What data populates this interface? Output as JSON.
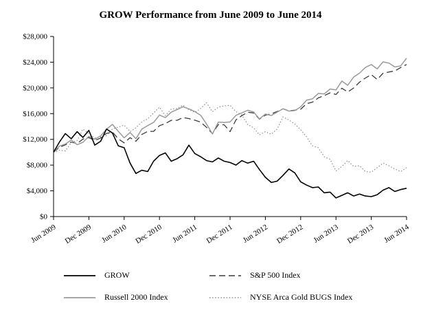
{
  "page": {
    "background": "#ffffff"
  },
  "chart_data": {
    "type": "line",
    "title": "GROW Performance from June 2009 to June 2014",
    "xlabel": "",
    "ylabel": "",
    "ylim": [
      0,
      28000
    ],
    "grid": false,
    "legend_position": "bottom",
    "x_unit": "monthly",
    "x_range": [
      "Jun 2009",
      "Jun 2014"
    ],
    "yticks": [
      {
        "value": 0,
        "label": "$0"
      },
      {
        "value": 4000,
        "label": "$4,000"
      },
      {
        "value": 8000,
        "label": "$8,000"
      },
      {
        "value": 12000,
        "label": "$12,000"
      },
      {
        "value": 16000,
        "label": "$16,000"
      },
      {
        "value": 20000,
        "label": "$20,000"
      },
      {
        "value": 24000,
        "label": "$24,000"
      },
      {
        "value": 28000,
        "label": "$28,000"
      }
    ],
    "xticks": [
      {
        "index": 0,
        "label": "Jun 2009"
      },
      {
        "index": 6,
        "label": "Dec 2009"
      },
      {
        "index": 12,
        "label": "Jun 2010"
      },
      {
        "index": 18,
        "label": "Dec 2010"
      },
      {
        "index": 24,
        "label": "Jun 2011"
      },
      {
        "index": 30,
        "label": "Dec 2011"
      },
      {
        "index": 36,
        "label": "Jun 2012"
      },
      {
        "index": 42,
        "label": "Dec 2012"
      },
      {
        "index": 48,
        "label": "Jun 2013"
      },
      {
        "index": 54,
        "label": "Dec 2013"
      },
      {
        "index": 60,
        "label": "Jun 2014"
      }
    ],
    "series": [
      {
        "name": "GROW",
        "color": "#000000",
        "style": "solid",
        "width": 1.6,
        "values": [
          10000,
          11600,
          12900,
          12100,
          13200,
          12300,
          13400,
          11100,
          11700,
          13600,
          13000,
          11000,
          10700,
          8300,
          6700,
          7200,
          7000,
          8600,
          9500,
          9900,
          8600,
          9000,
          9600,
          11100,
          9800,
          9300,
          8700,
          8500,
          9100,
          8600,
          8400,
          8000,
          8700,
          8300,
          8600,
          7300,
          6100,
          5300,
          5500,
          6400,
          7400,
          6800,
          5400,
          4900,
          4500,
          4600,
          3700,
          3800,
          2900,
          3300,
          3700,
          3200,
          3500,
          3200,
          3100,
          3400,
          4100,
          4500,
          3900,
          4200,
          4400
        ]
      },
      {
        "name": "S&P 500 Index",
        "color": "#3a3a3a",
        "style": "dashed",
        "width": 1.3,
        "values": [
          10000,
          10760,
          11150,
          11570,
          11360,
          12040,
          12270,
          11830,
          12200,
          12930,
          13140,
          12090,
          11460,
          12260,
          11710,
          12760,
          13240,
          13240,
          14130,
          14460,
          14960,
          14960,
          15400,
          15230,
          14980,
          14670,
          13870,
          12890,
          14300,
          14270,
          13200,
          15040,
          15690,
          16210,
          16100,
          15130,
          15760,
          15970,
          16330,
          16750,
          16440,
          16530,
          16680,
          17550,
          17780,
          18450,
          18800,
          19240,
          18980,
          19950,
          19370,
          19980,
          20890,
          21530,
          22070,
          21310,
          22280,
          22470,
          22640,
          23170,
          23640
        ]
      },
      {
        "name": "Russell 2000 Index",
        "color": "#9a9a9a",
        "style": "solid",
        "width": 1.5,
        "values": [
          10000,
          10960,
          11270,
          11900,
          11180,
          11540,
          12470,
          12010,
          12550,
          13570,
          14330,
          13250,
          12240,
          13070,
          12100,
          13590,
          14150,
          14630,
          15790,
          15380,
          16220,
          16640,
          17070,
          16750,
          16330,
          15740,
          14400,
          12830,
          14680,
          14630,
          14710,
          15740,
          16120,
          16520,
          16260,
          15180,
          15930,
          15710,
          16230,
          16760,
          16390,
          16470,
          17050,
          18100,
          18300,
          19140,
          19070,
          19820,
          19690,
          21060,
          20400,
          21680,
          22290,
          23180,
          23630,
          22970,
          24050,
          23850,
          23250,
          23430,
          24620
        ]
      },
      {
        "name": "NYSE Arca Gold BUGS Index",
        "color": "#8a8a8a",
        "style": "dotted",
        "width": 1.2,
        "values": [
          10000,
          10300,
          10200,
          11500,
          11800,
          13600,
          12900,
          12200,
          12400,
          12600,
          13600,
          13900,
          14200,
          13200,
          13800,
          14700,
          15200,
          16100,
          17000,
          15700,
          16700,
          16800,
          17300,
          16600,
          16200,
          16800,
          17700,
          16300,
          17000,
          17200,
          17300,
          16300,
          15800,
          14300,
          13800,
          12700,
          13200,
          12800,
          13600,
          15500,
          15000,
          14400,
          13500,
          12400,
          11000,
          10700,
          9300,
          8900,
          7100,
          7800,
          8700,
          7800,
          7900,
          7000,
          6900,
          7600,
          8300,
          7900,
          7400,
          7000,
          7600
        ]
      }
    ]
  }
}
